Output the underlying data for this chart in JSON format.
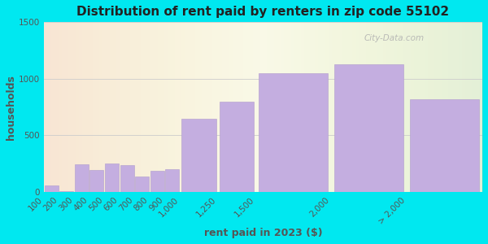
{
  "title": "Distribution of rent paid by renters in zip code 55102",
  "xlabel": "rent paid in 2023 ($)",
  "ylabel": "households",
  "bin_lefts": [
    100,
    200,
    300,
    400,
    500,
    600,
    700,
    800,
    900,
    1000,
    1250,
    1500,
    2000,
    2500
  ],
  "bin_widths": [
    100,
    100,
    100,
    100,
    100,
    100,
    100,
    100,
    100,
    250,
    250,
    500,
    500,
    500
  ],
  "values": [
    55,
    10,
    245,
    195,
    255,
    235,
    135,
    185,
    200,
    650,
    800,
    1050,
    1130,
    820
  ],
  "tick_positions": [
    100,
    200,
    300,
    400,
    500,
    600,
    700,
    800,
    900,
    1000,
    1250,
    1500,
    2000,
    2500
  ],
  "tick_labels": [
    "100",
    "200",
    "300",
    "400",
    "500",
    "600",
    "700",
    "800",
    "900",
    "1,000",
    "1,250",
    "1,500",
    "2,000",
    "> 2,000"
  ],
  "bar_color": "#c4aee0",
  "bar_edge_color": "#b09ccc",
  "ylim": [
    0,
    1500
  ],
  "yticks": [
    0,
    500,
    1000,
    1500
  ],
  "xlim": [
    100,
    3000
  ],
  "bg_outer": "#00e8f0",
  "title_fontsize": 11,
  "axis_label_fontsize": 9,
  "tick_fontsize": 7.5,
  "watermark": "City-Data.com"
}
